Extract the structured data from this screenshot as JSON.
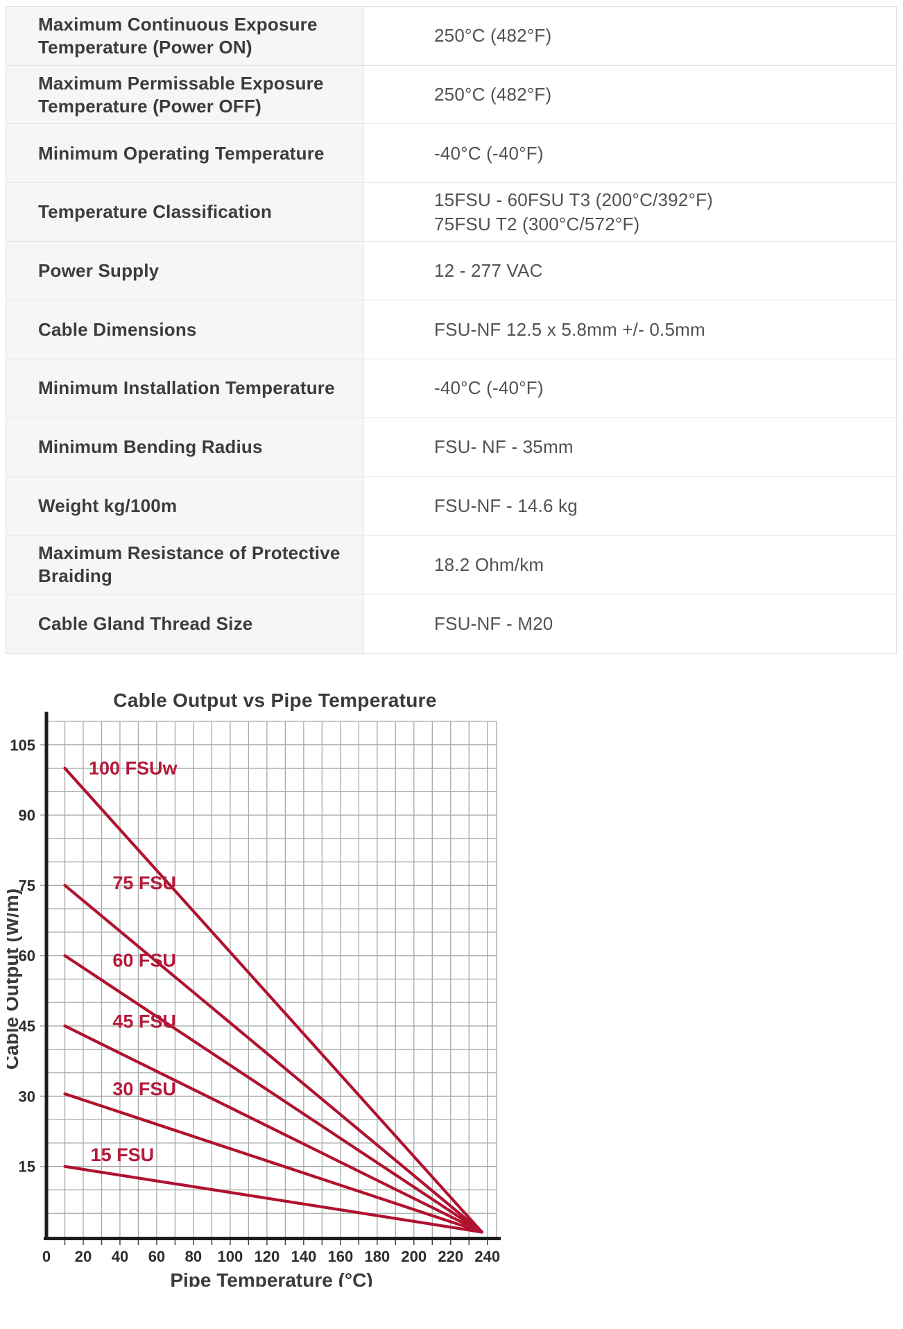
{
  "page": {
    "background": "#ffffff"
  },
  "spec_table": {
    "label_bg": "#f6f6f6",
    "border_color": "#e2e2e2",
    "rows": [
      {
        "label": "Maximum Continuous Exposure Temperature (Power ON)",
        "value_lines": [
          "250°C (482°F)"
        ]
      },
      {
        "label": "Maximum Permissable Exposure Temperature (Power OFF)",
        "value_lines": [
          "250°C (482°F)"
        ]
      },
      {
        "label": "Minimum Operating Temperature",
        "value_lines": [
          "-40°C (-40°F)"
        ]
      },
      {
        "label": "Temperature Classification",
        "value_lines": [
          "15FSU - 60FSU T3 (200°C/392°F)",
          "75FSU T2 (300°C/572°F)"
        ]
      },
      {
        "label": "Power Supply",
        "value_lines": [
          "12 - 277 VAC"
        ]
      },
      {
        "label": "Cable Dimensions",
        "value_lines": [
          "FSU-NF 12.5 x 5.8mm +/- 0.5mm"
        ]
      },
      {
        "label": "Minimum Installation Temperature",
        "value_lines": [
          "-40°C (-40°F)"
        ]
      },
      {
        "label": "Minimum Bending Radius",
        "value_lines": [
          "FSU- NF - 35mm"
        ]
      },
      {
        "label": "Weight kg/100m",
        "value_lines": [
          "FSU-NF - 14.6 kg"
        ]
      },
      {
        "label": "Maximum Resistance of Protective Braiding",
        "value_lines": [
          "18.2 Ohm/km"
        ]
      },
      {
        "label": "Cable Gland Thread Size",
        "value_lines": [
          "FSU-NF - M20"
        ]
      }
    ]
  },
  "chart_data": {
    "type": "line",
    "title": "Cable Output vs Pipe Temperature",
    "xlabel": "Pipe Temperature (°C)",
    "ylabel": "Cable Output (W/m)",
    "xlim": [
      0,
      245
    ],
    "ylim": [
      0,
      110
    ],
    "x_ticks": [
      0,
      20,
      40,
      60,
      80,
      100,
      120,
      140,
      160,
      180,
      200,
      220,
      240
    ],
    "y_ticks": [
      15,
      30,
      45,
      60,
      75,
      90,
      105
    ],
    "grid": {
      "x_step": 10,
      "y_step": 5,
      "on": true
    },
    "legend_position": "inline-labels",
    "colors": {
      "line": "#b0122f",
      "series_label": "#b41a3a",
      "grid": "#a5aaa8",
      "axis": "#1d1d1b",
      "tick_text": "#2d2d2d",
      "title_text": "#3b3b3b"
    },
    "series": [
      {
        "name": "100 FSUw",
        "points": [
          [
            10,
            100
          ],
          [
            237,
            1
          ]
        ],
        "label_at": [
          23,
          100
        ]
      },
      {
        "name": "75 FSU",
        "points": [
          [
            10,
            75
          ],
          [
            237,
            1
          ]
        ],
        "label_at": [
          36,
          75.5
        ]
      },
      {
        "name": "60 FSU",
        "points": [
          [
            10,
            60
          ],
          [
            237,
            1
          ]
        ],
        "label_at": [
          36,
          59
        ]
      },
      {
        "name": "45 FSU",
        "points": [
          [
            10,
            45
          ],
          [
            237,
            1
          ]
        ],
        "label_at": [
          36,
          46
        ]
      },
      {
        "name": "30 FSU",
        "points": [
          [
            10,
            30.5
          ],
          [
            237,
            1
          ]
        ],
        "label_at": [
          36,
          31.5
        ]
      },
      {
        "name": "15 FSU",
        "points": [
          [
            10,
            15
          ],
          [
            237,
            1
          ]
        ],
        "label_at": [
          24,
          17.5
        ]
      }
    ]
  }
}
